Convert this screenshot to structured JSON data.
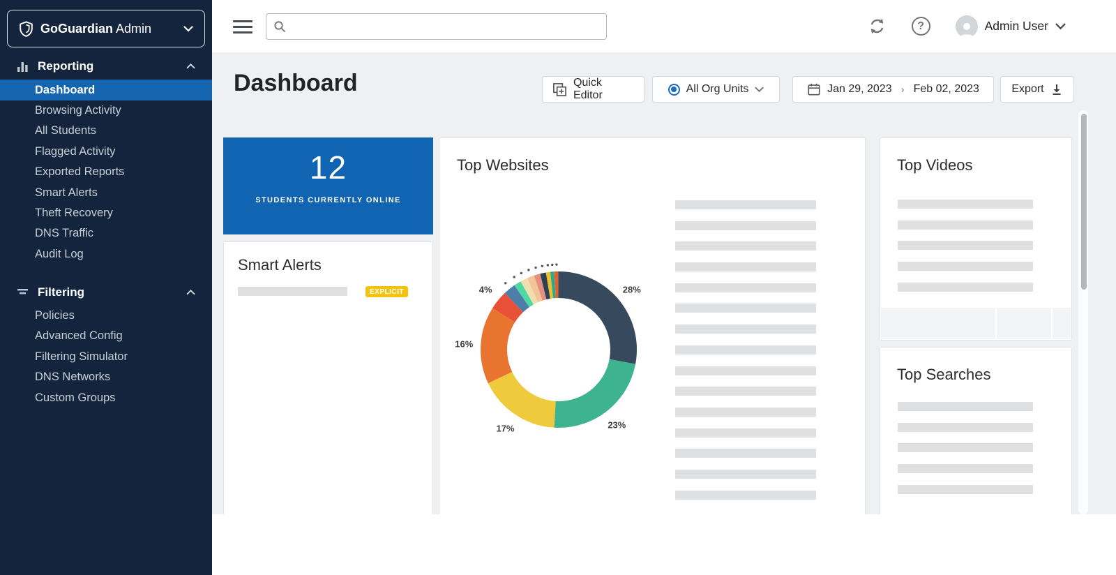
{
  "app": {
    "brand_bold": "GoGuardian",
    "brand_regular": "Admin"
  },
  "colors": {
    "sidebar_bg": "#13243c",
    "active_blue": "#1565b0",
    "card_blue": "#1064b1",
    "badge_yellow": "#f2c411",
    "main_bg": "#eef0f2"
  },
  "sidebar": {
    "sections": [
      {
        "label": "Reporting",
        "icon": "bar-chart-icon",
        "expanded": true,
        "active_item": "Dashboard",
        "items": [
          "Dashboard",
          "Browsing Activity",
          "All Students",
          "Flagged Activity",
          "Exported Reports",
          "Smart Alerts",
          "Theft Recovery",
          "DNS Traffic",
          "Audit Log"
        ]
      },
      {
        "label": "Filtering",
        "icon": "filter-icon",
        "expanded": true,
        "items": [
          "Policies",
          "Advanced Config",
          "Filtering Simulator",
          "DNS Networks",
          "Custom Groups"
        ]
      }
    ]
  },
  "topbar": {
    "search": {
      "value": "",
      "placeholder": ""
    },
    "user_name": "Admin User"
  },
  "header": {
    "title": "Dashboard",
    "quick_editor_label": "Quick Editor",
    "org_units_label": "All Org Units",
    "date_start": "Jan 29, 2023",
    "date_end": "Feb 02, 2023",
    "export_label": "Export"
  },
  "cards": {
    "online": {
      "count": "12",
      "label": "STUDENTS CURRENTLY ONLINE"
    },
    "smart_alerts": {
      "title": "Smart Alerts",
      "badge": "EXPLICIT",
      "placeholder_rows": 1
    },
    "top_websites": {
      "title": "Top Websites",
      "placeholder_rows": 15
    },
    "top_videos": {
      "title": "Top Videos",
      "placeholder_rows": 5
    },
    "top_searches": {
      "title": "Top Searches",
      "placeholder_rows": 5
    }
  },
  "chart_data": {
    "type": "pie",
    "title": "Top Websites",
    "donut": true,
    "unit": "%",
    "start_angle": "top",
    "direction": "clockwise",
    "legend": "none",
    "values": [
      28,
      23,
      17,
      16,
      4,
      2.5,
      1.5,
      1.5,
      1.5,
      1.3,
      1.2,
      0.9,
      0.8,
      0.8
    ],
    "colors": [
      "#36495d",
      "#3db390",
      "#f0ca3d",
      "#e8742f",
      "#e85138",
      "#4d7ea8",
      "#4cd9a2",
      "#efdfae",
      "#f2c496",
      "#e4907f",
      "#2e4154",
      "#edc02f",
      "#2fa98a",
      "#e6602c"
    ],
    "shown_labels": [
      "28%",
      "23%",
      "17%",
      "16%",
      "4%"
    ],
    "label_min": 4
  }
}
